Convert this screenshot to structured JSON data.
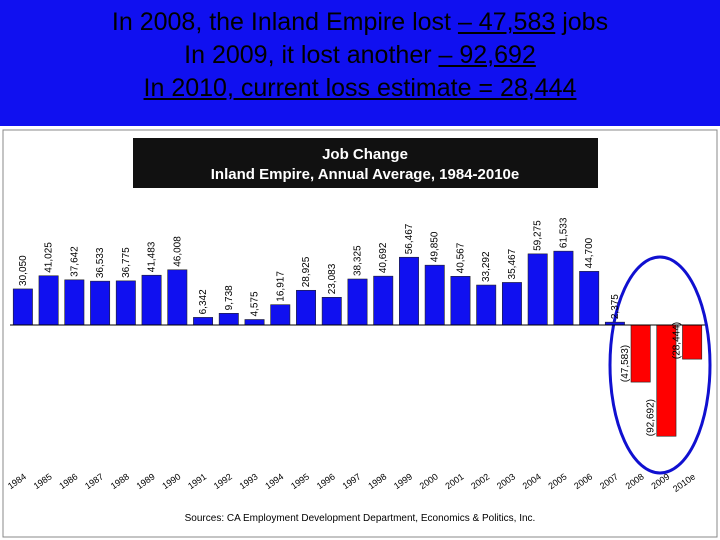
{
  "header": {
    "lines": [
      {
        "before": "In 2008, the Inland Empire lost ",
        "underlined": "– 47,583",
        "after": " jobs"
      },
      {
        "before": "In 2009, it lost another ",
        "underlined": "– 92,692"
      },
      {
        "underlined": "In 2010, current loss estimate = 28,444"
      }
    ]
  },
  "chart_data": {
    "type": "bar",
    "title": "Job Change",
    "subtitle": "Inland Empire, Annual Average, 1984-2010e",
    "categories": [
      "1984",
      "1985",
      "1986",
      "1987",
      "1988",
      "1989",
      "1990",
      "1991",
      "1992",
      "1993",
      "1994",
      "1995",
      "1996",
      "1997",
      "1998",
      "1999",
      "2000",
      "2001",
      "2002",
      "2003",
      "2004",
      "2005",
      "2006",
      "2007",
      "2008",
      "2009",
      "2010e"
    ],
    "values": [
      30050,
      41025,
      37642,
      36533,
      36775,
      41483,
      46008,
      6342,
      9738,
      4575,
      16917,
      28925,
      23083,
      38325,
      40692,
      56467,
      49850,
      40567,
      33292,
      35467,
      59275,
      61533,
      44700,
      2375,
      -47583,
      -92692,
      -28444
    ],
    "value_labels": [
      "30,050",
      "41,025",
      "37,642",
      "36,533",
      "36,775",
      "41,483",
      "46,008",
      "6,342",
      "9,738",
      "4,575",
      "16,917",
      "28,925",
      "23,083",
      "38,325",
      "40,692",
      "56,467",
      "49,850",
      "40,567",
      "33,292",
      "35,467",
      "59,275",
      "61,533",
      "44,700",
      "2,375",
      "(47,583)",
      "(92,692)",
      "(28,444)"
    ],
    "color": "#1010f0",
    "negative_color": "#ff0000",
    "ylim": [
      -100000,
      100000
    ],
    "source": "Sources: CA Employment Development Department, Economics & Politics, Inc."
  }
}
